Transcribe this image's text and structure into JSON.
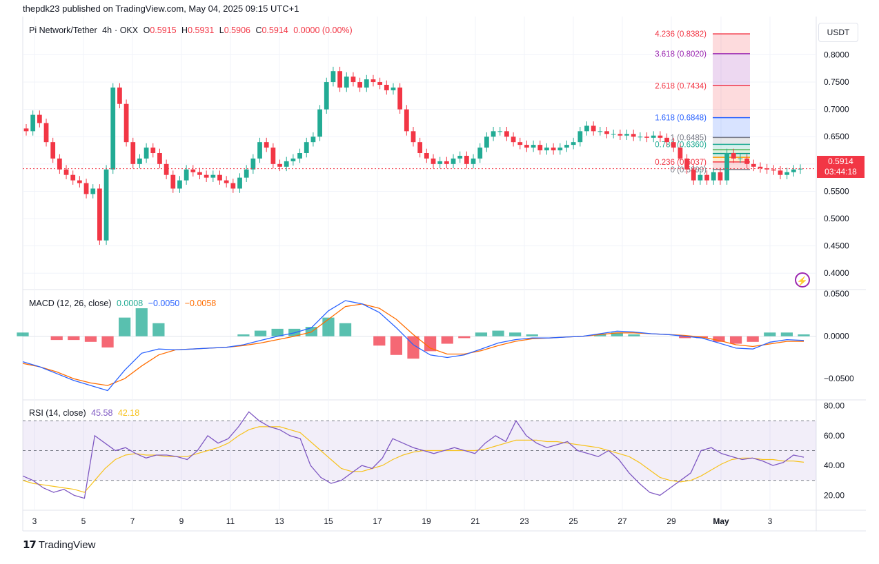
{
  "header": {
    "published_by": "thepdk23 published on TradingView.com, May 04, 2025 09:15 UTC+1"
  },
  "symbol": {
    "name": "Pi Network/Tether",
    "interval": "4h",
    "exchange": "OKX",
    "open_label": "O",
    "open": "0.5915",
    "high_label": "H",
    "high": "0.5931",
    "low_label": "L",
    "low": "0.5906",
    "close_label": "C",
    "close": "0.5914",
    "change": "0.0000 (0.00%)"
  },
  "currency_button": "USDT",
  "last_price": {
    "price": "0.5914",
    "countdown": "03:44:18"
  },
  "macd": {
    "title": "MACD (12, 26, close)",
    "histogram": "0.0008",
    "macd": "−0.0050",
    "signal": "−0.0058"
  },
  "rsi": {
    "title": "RSI (14, close)",
    "rsi": "45.58",
    "ma": "42.18"
  },
  "branding": {
    "logo": "TradingView"
  },
  "colors": {
    "up": "#22ab94",
    "down": "#f23645",
    "macd_line": "#2962ff",
    "signal_line": "#ff6d00",
    "rsi_line": "#7e57c2",
    "rsi_ma": "#f7c21c"
  },
  "chart_data": [
    {
      "type": "candlestick",
      "title": "Pi Network/Tether · 4h · OKX",
      "ylim": [
        0.37,
        0.87
      ],
      "x_ticks": [
        "3",
        "5",
        "7",
        "9",
        "11",
        "13",
        "15",
        "17",
        "19",
        "21",
        "23",
        "25",
        "27",
        "29",
        "May",
        "3"
      ],
      "y_ticks": [
        "0.8000",
        "0.7500",
        "0.7000",
        "0.6500",
        "0.6000",
        "0.5500",
        "0.5000",
        "0.4500",
        "0.4000"
      ],
      "fibonacci": [
        {
          "level": "4.236",
          "price": "0.8382",
          "color": "#f23645"
        },
        {
          "level": "3.618",
          "price": "0.8020",
          "color": "#9c27b0"
        },
        {
          "level": "2.618",
          "price": "0.7434",
          "color": "#f23645"
        },
        {
          "level": "1.618",
          "price": "0.6848",
          "color": "#2962ff"
        },
        {
          "level": "1",
          "price": "0.6485",
          "color": "#787b86"
        },
        {
          "level": "0.786",
          "price": "0.6360",
          "color": "#22ab94"
        },
        {
          "level": "0.618",
          "price": "0.6261",
          "color": "#4caf50"
        },
        {
          "level": "0.5",
          "price": "0.6192",
          "color": "#089981"
        },
        {
          "level": "0.382",
          "price": "0.6123",
          "color": "#ff9800"
        },
        {
          "level": "0.236",
          "price": "0.6037",
          "color": "#f23645"
        },
        {
          "level": "0",
          "price": "0.5899",
          "color": "#787b86"
        }
      ],
      "close_series": [
        0.66,
        0.69,
        0.675,
        0.64,
        0.61,
        0.59,
        0.58,
        0.57,
        0.565,
        0.545,
        0.555,
        0.46,
        0.59,
        0.74,
        0.71,
        0.64,
        0.6,
        0.61,
        0.63,
        0.62,
        0.6,
        0.58,
        0.555,
        0.57,
        0.59,
        0.585,
        0.58,
        0.575,
        0.58,
        0.57,
        0.565,
        0.555,
        0.575,
        0.59,
        0.61,
        0.64,
        0.63,
        0.6,
        0.595,
        0.605,
        0.61,
        0.62,
        0.64,
        0.65,
        0.7,
        0.75,
        0.77,
        0.74,
        0.76,
        0.75,
        0.74,
        0.755,
        0.75,
        0.745,
        0.735,
        0.74,
        0.7,
        0.66,
        0.64,
        0.62,
        0.61,
        0.6,
        0.605,
        0.6,
        0.61,
        0.615,
        0.6,
        0.61,
        0.63,
        0.65,
        0.66,
        0.66,
        0.65,
        0.64,
        0.635,
        0.63,
        0.635,
        0.625,
        0.63,
        0.625,
        0.63,
        0.635,
        0.64,
        0.66,
        0.67,
        0.66,
        0.66,
        0.655,
        0.655,
        0.652,
        0.655,
        0.65,
        0.65,
        0.648,
        0.652,
        0.648,
        0.64,
        0.63,
        0.61,
        0.59,
        0.57,
        0.58,
        0.57,
        0.585,
        0.57,
        0.62,
        0.61,
        0.61,
        0.6,
        0.595,
        0.592,
        0.59,
        0.588,
        0.58,
        0.585,
        0.59,
        0.5914
      ],
      "macd_series": [
        -0.03,
        -0.036,
        -0.044,
        -0.052,
        -0.058,
        -0.064,
        -0.04,
        -0.02,
        -0.015,
        -0.016,
        -0.015,
        -0.014,
        -0.013,
        -0.01,
        -0.005,
        0.0,
        0.004,
        0.01,
        0.03,
        0.042,
        0.038,
        0.028,
        0.01,
        -0.01,
        -0.022,
        -0.025,
        -0.022,
        -0.015,
        -0.008,
        -0.004,
        -0.002,
        -0.002,
        -0.001,
        0.0,
        0.003,
        0.006,
        0.005,
        0.003,
        0.002,
        0.0,
        -0.002,
        -0.008,
        -0.014,
        -0.015,
        -0.007,
        -0.004,
        -0.005
      ],
      "signal_series": [
        -0.032,
        -0.036,
        -0.042,
        -0.05,
        -0.055,
        -0.058,
        -0.05,
        -0.035,
        -0.022,
        -0.016,
        -0.015,
        -0.014,
        -0.013,
        -0.011,
        -0.008,
        -0.004,
        0.0,
        0.005,
        0.02,
        0.035,
        0.038,
        0.033,
        0.02,
        0.002,
        -0.014,
        -0.021,
        -0.021,
        -0.017,
        -0.011,
        -0.006,
        -0.003,
        -0.002,
        -0.001,
        0.0,
        0.002,
        0.004,
        0.004,
        0.003,
        0.002,
        0.001,
        -0.001,
        -0.005,
        -0.01,
        -0.012,
        -0.009,
        -0.006,
        -0.006
      ],
      "rsi_series": [
        33,
        30,
        25,
        22,
        24,
        20,
        18,
        60,
        55,
        50,
        52,
        48,
        45,
        47,
        47,
        46,
        44,
        50,
        60,
        55,
        58,
        66,
        76,
        70,
        66,
        64,
        60,
        58,
        40,
        32,
        28,
        30,
        35,
        40,
        38,
        45,
        58,
        55,
        52,
        50,
        48,
        50,
        52,
        50,
        48,
        55,
        60,
        56,
        70,
        60,
        55,
        52,
        54,
        56,
        50,
        48,
        46,
        50,
        44,
        35,
        28,
        22,
        20,
        25,
        30,
        35,
        50,
        52,
        48,
        46,
        44,
        45,
        43,
        40,
        42,
        47,
        45.58
      ],
      "rsi_ma_series": [
        30,
        28,
        27,
        26,
        25,
        24,
        22,
        30,
        38,
        44,
        47,
        48,
        47,
        47,
        46,
        46,
        46,
        48,
        50,
        52,
        55,
        60,
        64,
        66,
        66,
        66,
        64,
        62,
        56,
        50,
        44,
        38,
        36,
        36,
        38,
        40,
        44,
        47,
        49,
        50,
        50,
        50,
        50,
        50,
        50,
        51,
        53,
        55,
        57,
        57,
        57,
        56,
        56,
        55,
        54,
        53,
        52,
        50,
        48,
        46,
        42,
        37,
        32,
        30,
        29,
        30,
        33,
        37,
        41,
        44,
        45,
        45,
        44,
        44,
        43,
        43,
        42.18
      ],
      "rsi_bands": {
        "upper": 70,
        "middle": 50,
        "lower": 30
      },
      "rsi_ticks": [
        "80.00",
        "60.00",
        "40.00",
        "20.00"
      ],
      "macd_ticks": [
        "0.0500",
        "0.0000",
        "−0.0500"
      ]
    }
  ]
}
